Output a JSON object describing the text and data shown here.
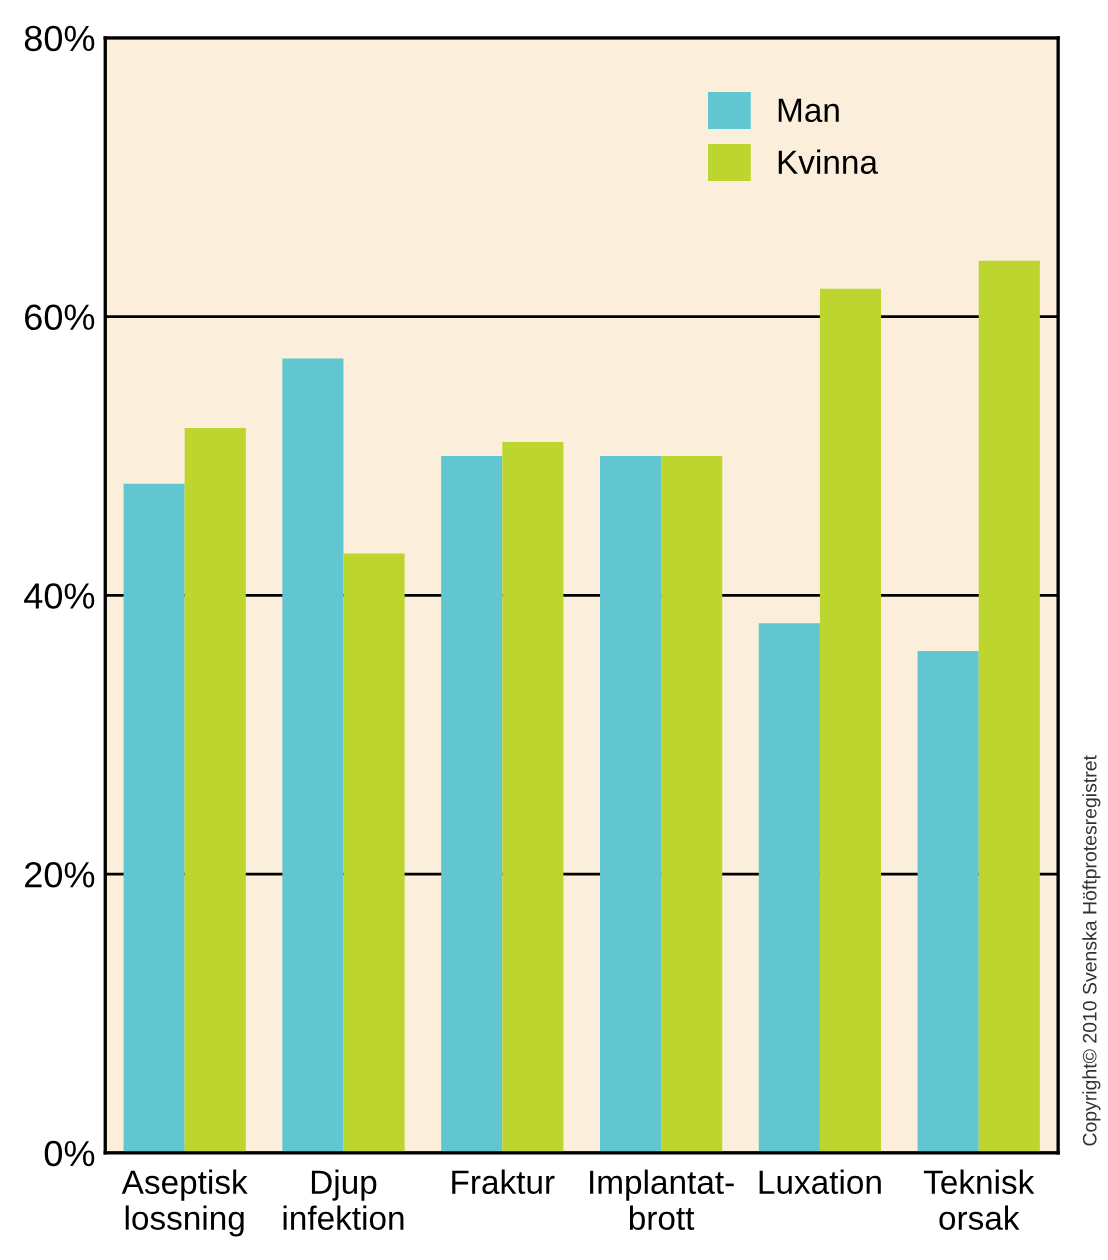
{
  "chart_data": {
    "type": "bar",
    "categories": [
      "Aseptisk\nlossning",
      "Djup\ninfektion",
      "Fraktur",
      "Implantat-\nbrott",
      "Luxation",
      "Teknisk\norsak"
    ],
    "series": [
      {
        "name": "Man",
        "color": "#62c6d0",
        "values": [
          48,
          57,
          50,
          50,
          38,
          36
        ]
      },
      {
        "name": "Kvinna",
        "color": "#bdd62f",
        "values": [
          52,
          43,
          51,
          50,
          62,
          64
        ]
      }
    ],
    "ylim": [
      0,
      80
    ],
    "yticks": [
      {
        "value": 0,
        "label": "0%"
      },
      {
        "value": 20,
        "label": "20%"
      },
      {
        "value": 40,
        "label": "40%"
      },
      {
        "value": 60,
        "label": "60%"
      },
      {
        "value": 80,
        "label": "80%"
      }
    ],
    "grid": "y",
    "legend": "top right",
    "annotations": [
      "Copyright© 2010 Svenska Höftprotesregistret"
    ]
  }
}
